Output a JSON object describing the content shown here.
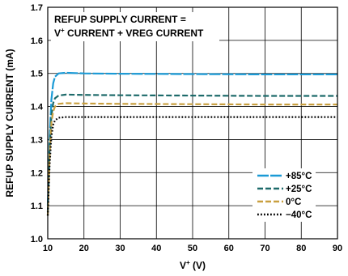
{
  "chart_data": {
    "type": "line",
    "annotation": {
      "line1": "REFUP SUPPLY CURRENT =",
      "line2_prefix": "V",
      "line2_sup": "+",
      "line2_suffix": " CURRENT + VREG CURRENT"
    },
    "xlabel": {
      "main": "V",
      "sup": "+",
      "unit": " (V)"
    },
    "ylabel": "REFUP SUPPLY CURRENT (mA)",
    "xlim": [
      10,
      90
    ],
    "ylim": [
      1.0,
      1.7
    ],
    "xticks": [
      "10",
      "20",
      "30",
      "40",
      "50",
      "60",
      "70",
      "80",
      "90"
    ],
    "yticks": [
      "1.0",
      "1.1",
      "1.2",
      "1.3",
      "1.4",
      "1.5",
      "1.6",
      "1.7"
    ],
    "grid": true,
    "legend_position": "bottom-right",
    "series": [
      {
        "name": "+85°C",
        "color": "#1a9ad6",
        "dash": "solid-long",
        "points": [
          [
            10,
            1.1
          ],
          [
            10.5,
            1.3
          ],
          [
            11,
            1.42
          ],
          [
            11.5,
            1.47
          ],
          [
            12,
            1.49
          ],
          [
            13,
            1.5
          ],
          [
            15,
            1.502
          ],
          [
            20,
            1.5
          ],
          [
            30,
            1.499
          ],
          [
            50,
            1.498
          ],
          [
            70,
            1.497
          ],
          [
            90,
            1.497
          ]
        ]
      },
      {
        "name": "+25°C",
        "color": "#1d6a6a",
        "dash": "dashed",
        "points": [
          [
            10,
            1.08
          ],
          [
            10.5,
            1.27
          ],
          [
            11,
            1.37
          ],
          [
            11.5,
            1.41
          ],
          [
            12,
            1.425
          ],
          [
            13,
            1.433
          ],
          [
            15,
            1.436
          ],
          [
            20,
            1.435
          ],
          [
            30,
            1.434
          ],
          [
            50,
            1.433
          ],
          [
            70,
            1.432
          ],
          [
            90,
            1.432
          ]
        ]
      },
      {
        "name": "0°C",
        "color": "#c9a040",
        "dash": "dashed",
        "points": [
          [
            10,
            1.07
          ],
          [
            10.5,
            1.25
          ],
          [
            11,
            1.35
          ],
          [
            11.5,
            1.385
          ],
          [
            12,
            1.4
          ],
          [
            13,
            1.408
          ],
          [
            15,
            1.41
          ],
          [
            20,
            1.409
          ],
          [
            30,
            1.408
          ],
          [
            50,
            1.407
          ],
          [
            70,
            1.406
          ],
          [
            90,
            1.406
          ]
        ]
      },
      {
        "name": "−40°C",
        "color": "#000000",
        "dash": "dotted",
        "points": [
          [
            10,
            1.07
          ],
          [
            10.5,
            1.22
          ],
          [
            11,
            1.31
          ],
          [
            11.5,
            1.345
          ],
          [
            12,
            1.358
          ],
          [
            13,
            1.366
          ],
          [
            15,
            1.368
          ],
          [
            20,
            1.368
          ],
          [
            30,
            1.368
          ],
          [
            50,
            1.368
          ],
          [
            70,
            1.368
          ],
          [
            90,
            1.368
          ]
        ]
      }
    ]
  }
}
